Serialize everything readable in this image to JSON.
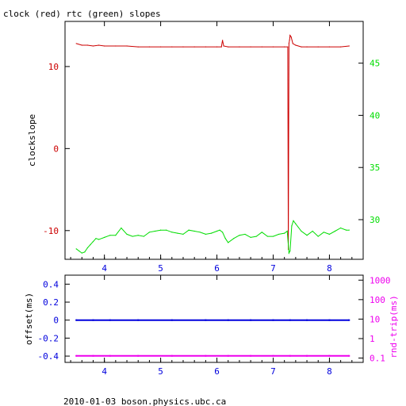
{
  "title": "clock (red) rtc (green) slopes",
  "footer": "2010-01-03  boson.physics.ubc.ca",
  "colors": {
    "red": "#cc0000",
    "green": "#00dd00",
    "blue": "#0000dd",
    "magenta": "#ee00ee",
    "axis": "#000000"
  },
  "chart_data": [
    {
      "type": "line",
      "title": "clock (red) rtc (green) slopes",
      "ylabel": "clockslope",
      "xlim": [
        3.3,
        8.6
      ],
      "ylim": [
        -13.5,
        15.5
      ],
      "y2lim": [
        26.2,
        49.0
      ],
      "xticks": [
        "4",
        "5",
        "6",
        "7",
        "8"
      ],
      "yticks": [
        "-10",
        "0",
        "10"
      ],
      "y2ticks": [
        "30",
        "35",
        "40",
        "45"
      ],
      "grid": false,
      "series": [
        {
          "name": "clock",
          "color": "red",
          "axis": "left",
          "x": [
            3.5,
            3.6,
            3.7,
            3.8,
            3.9,
            4.0,
            4.2,
            4.4,
            4.6,
            4.8,
            5.0,
            5.2,
            5.4,
            5.6,
            5.8,
            6.0,
            6.08,
            6.1,
            6.12,
            6.2,
            6.4,
            6.6,
            6.8,
            7.0,
            7.2,
            7.26,
            7.27,
            7.28,
            7.29,
            7.3,
            7.32,
            7.35,
            7.4,
            7.5,
            7.6,
            7.8,
            8.0,
            8.2,
            8.35
          ],
          "values": [
            12.8,
            12.6,
            12.6,
            12.5,
            12.6,
            12.5,
            12.5,
            12.5,
            12.4,
            12.4,
            12.4,
            12.4,
            12.4,
            12.4,
            12.4,
            12.4,
            12.4,
            13.2,
            12.5,
            12.4,
            12.4,
            12.4,
            12.4,
            12.4,
            12.4,
            12.4,
            -12.3,
            12.8,
            13.2,
            13.8,
            13.6,
            12.8,
            12.6,
            12.4,
            12.4,
            12.4,
            12.4,
            12.4,
            12.5
          ]
        },
        {
          "name": "rtc",
          "color": "green",
          "axis": "right",
          "x": [
            3.5,
            3.55,
            3.6,
            3.65,
            3.7,
            3.75,
            3.8,
            3.85,
            3.9,
            4.0,
            4.1,
            4.2,
            4.3,
            4.4,
            4.5,
            4.6,
            4.7,
            4.8,
            4.9,
            5.0,
            5.1,
            5.2,
            5.3,
            5.4,
            5.5,
            5.6,
            5.7,
            5.8,
            5.9,
            6.0,
            6.05,
            6.1,
            6.15,
            6.2,
            6.3,
            6.4,
            6.5,
            6.6,
            6.7,
            6.8,
            6.9,
            7.0,
            7.1,
            7.2,
            7.25,
            7.28,
            7.3,
            7.33,
            7.36,
            7.4,
            7.5,
            7.6,
            7.7,
            7.8,
            7.9,
            8.0,
            8.1,
            8.2,
            8.3,
            8.35
          ],
          "values": [
            27.2,
            27.0,
            26.8,
            26.9,
            27.3,
            27.6,
            27.9,
            28.2,
            28.1,
            28.3,
            28.5,
            28.5,
            29.2,
            28.6,
            28.4,
            28.5,
            28.4,
            28.8,
            28.9,
            29.0,
            29.0,
            28.8,
            28.7,
            28.6,
            29.0,
            28.9,
            28.8,
            28.6,
            28.7,
            28.9,
            29.0,
            28.8,
            28.2,
            27.8,
            28.2,
            28.5,
            28.6,
            28.3,
            28.4,
            28.8,
            28.4,
            28.4,
            28.6,
            28.7,
            28.9,
            26.8,
            27.0,
            29.4,
            29.9,
            29.6,
            28.9,
            28.5,
            28.9,
            28.4,
            28.8,
            28.6,
            28.9,
            29.2,
            29.0,
            29.0
          ]
        }
      ]
    },
    {
      "type": "scatter",
      "ylabel": "offset(ms)",
      "y2label": "rnd-trip(ms)",
      "xlim": [
        3.3,
        8.6
      ],
      "ylim": [
        -0.47,
        0.5
      ],
      "y2lim": [
        0.06,
        1800
      ],
      "y2scale": "log",
      "xticks": [
        "4",
        "5",
        "6",
        "7",
        "8"
      ],
      "yticks": [
        "-0.4",
        "-0.2",
        "0",
        "0.2",
        "0.4"
      ],
      "y2ticks": [
        "0.1",
        "1",
        "10",
        "100",
        "1000"
      ],
      "grid": false,
      "series": [
        {
          "name": "offset",
          "color": "blue",
          "axis": "left",
          "x": [
            3.5,
            3.8,
            4.1,
            4.6,
            5.2,
            5.8,
            6.2,
            6.6,
            7.0,
            7.3,
            7.6,
            8.0,
            8.35
          ],
          "values": [
            0.0,
            0.0,
            0.0,
            0.0,
            0.0,
            0.0,
            0.0,
            0.0,
            0.0,
            0.0,
            0.0,
            0.0,
            0.0
          ]
        },
        {
          "name": "rnd-trip",
          "color": "magenta",
          "axis": "right",
          "x": [
            3.5,
            3.8,
            4.1,
            4.6,
            5.2,
            5.8,
            6.2,
            6.6,
            7.0,
            7.3,
            7.6,
            8.0,
            8.35
          ],
          "values": [
            0.13,
            0.13,
            0.13,
            0.13,
            0.13,
            0.13,
            0.13,
            0.13,
            0.13,
            0.13,
            0.13,
            0.13,
            0.13
          ]
        }
      ]
    }
  ]
}
